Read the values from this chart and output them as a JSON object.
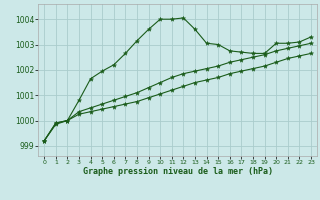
{
  "title": "Graphe pression niveau de la mer (hPa)",
  "background_color": "#cce8e8",
  "grid_color": "#aacccc",
  "line_color": "#1a5c1a",
  "xlim": [
    -0.5,
    23.5
  ],
  "ylim": [
    998.6,
    1004.6
  ],
  "yticks": [
    999,
    1000,
    1001,
    1002,
    1003,
    1004
  ],
  "xticks": [
    0,
    1,
    2,
    3,
    4,
    5,
    6,
    7,
    8,
    9,
    10,
    11,
    12,
    13,
    14,
    15,
    16,
    17,
    18,
    19,
    20,
    21,
    22,
    23
  ],
  "series1_x": [
    0,
    1,
    2,
    3,
    4,
    5,
    6,
    7,
    8,
    9,
    10,
    11,
    12,
    13,
    14,
    15,
    16,
    17,
    18,
    19,
    20,
    21,
    22,
    23
  ],
  "series1_y": [
    999.2,
    999.9,
    1000.0,
    1000.25,
    1000.35,
    1000.45,
    1000.55,
    1000.65,
    1000.75,
    1000.9,
    1001.05,
    1001.2,
    1001.35,
    1001.5,
    1001.6,
    1001.7,
    1001.85,
    1001.95,
    1002.05,
    1002.15,
    1002.3,
    1002.45,
    1002.55,
    1002.65
  ],
  "series2_x": [
    0,
    1,
    2,
    3,
    4,
    5,
    6,
    7,
    8,
    9,
    10,
    11,
    12,
    13,
    14,
    15,
    16,
    17,
    18,
    19,
    20,
    21,
    22,
    23
  ],
  "series2_y": [
    999.2,
    999.9,
    1000.0,
    1000.35,
    1000.5,
    1000.65,
    1000.8,
    1000.95,
    1001.1,
    1001.3,
    1001.5,
    1001.7,
    1001.85,
    1001.95,
    1002.05,
    1002.15,
    1002.3,
    1002.4,
    1002.5,
    1002.6,
    1002.75,
    1002.85,
    1002.95,
    1003.05
  ],
  "series3_x": [
    0,
    1,
    2,
    3,
    4,
    5,
    6,
    7,
    8,
    9,
    10,
    11,
    12,
    13,
    14,
    15,
    16,
    17,
    18,
    19,
    20,
    21,
    22,
    23
  ],
  "series3_y": [
    999.2,
    999.85,
    1000.0,
    1000.8,
    1001.65,
    1001.95,
    1002.2,
    1002.65,
    1003.15,
    1003.6,
    1004.0,
    1004.0,
    1004.05,
    1003.6,
    1003.05,
    1003.0,
    1002.75,
    1002.7,
    1002.65,
    1002.65,
    1003.05,
    1003.05,
    1003.1,
    1003.3
  ]
}
